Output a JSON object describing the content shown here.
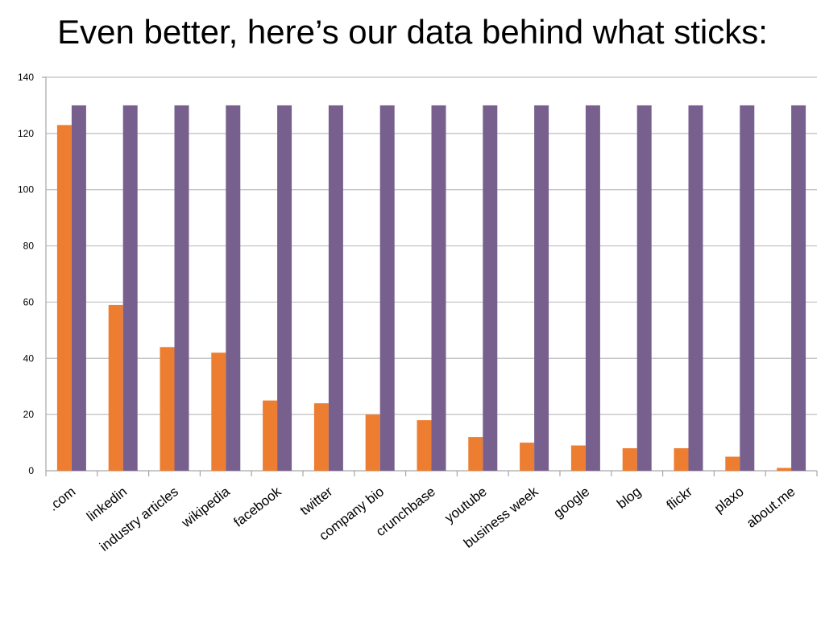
{
  "title": "Even better, here’s our data behind what sticks:",
  "colors": {
    "series_a": "#ED7D31",
    "series_b": "#77608E",
    "axis": "#A6A6A6",
    "grid": "#BFBFBF"
  },
  "chart_data": {
    "type": "bar",
    "categories": [
      ".com",
      "linkedin",
      "industry articles",
      "wikipedia",
      "facebook",
      "twitter",
      "company bio",
      "crunchbase",
      "youtube",
      "business week",
      "google",
      "blog",
      "flickr",
      "plaxo",
      "about.me"
    ],
    "series": [
      {
        "values": [
          123,
          59,
          44,
          42,
          25,
          24,
          20,
          18,
          12,
          10,
          9,
          8,
          8,
          5,
          1
        ]
      },
      {
        "values": [
          130,
          130,
          130,
          130,
          130,
          130,
          130,
          130,
          130,
          130,
          130,
          130,
          130,
          130,
          130
        ]
      }
    ],
    "ylim": [
      0,
      140
    ],
    "yticks": [
      0,
      20,
      40,
      60,
      80,
      100,
      120,
      140
    ],
    "xlabel": "",
    "ylabel": "",
    "grid": true,
    "legend": "none"
  }
}
